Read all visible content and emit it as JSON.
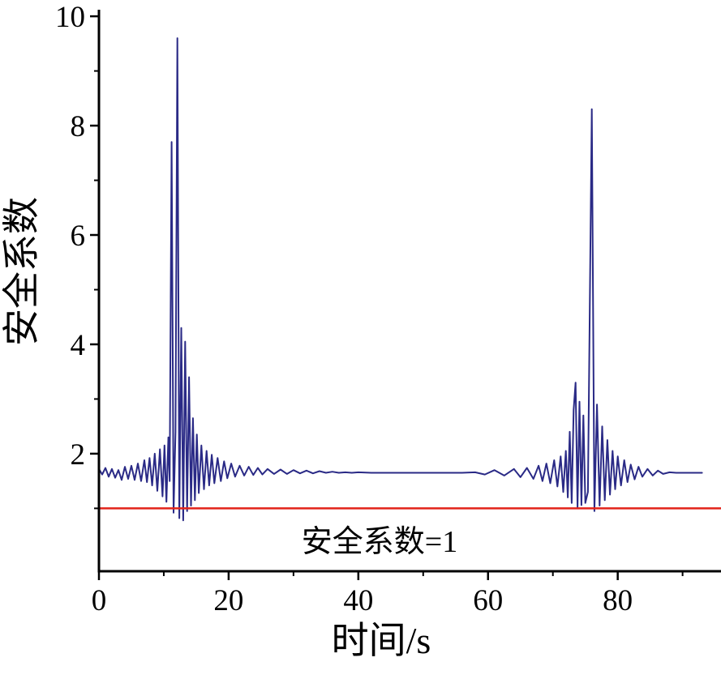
{
  "figure": {
    "background": "#ffffff",
    "axis_color": "#000000",
    "tick_label_color": "#000000"
  },
  "chart_data": {
    "type": "line",
    "title": "",
    "xlabel": "时间/s",
    "ylabel": "安全系数",
    "xlim": [
      0,
      95.3
    ],
    "ylim": [
      -0.15,
      10.12
    ],
    "x_major_ticks": [
      0,
      20,
      40,
      60,
      80
    ],
    "x_minor_ticks": [
      10,
      30,
      50,
      70,
      90
    ],
    "y_major_ticks": [
      2,
      4,
      6,
      8,
      10
    ],
    "y_minor_ticks": [
      1,
      3,
      5,
      7,
      9
    ],
    "grid": false,
    "legend": "none",
    "series": [
      {
        "name": "安全系数",
        "color": "#2a2a86",
        "width": 2,
        "points": [
          [
            0,
            1.72
          ],
          [
            0.5,
            1.62
          ],
          [
            1,
            1.74
          ],
          [
            1.5,
            1.58
          ],
          [
            2,
            1.72
          ],
          [
            2.5,
            1.56
          ],
          [
            3,
            1.7
          ],
          [
            3.5,
            1.52
          ],
          [
            4,
            1.76
          ],
          [
            4.5,
            1.54
          ],
          [
            5,
            1.78
          ],
          [
            5.5,
            1.52
          ],
          [
            6,
            1.82
          ],
          [
            6.5,
            1.5
          ],
          [
            7,
            1.88
          ],
          [
            7.4,
            1.48
          ],
          [
            7.8,
            1.92
          ],
          [
            8.2,
            1.42
          ],
          [
            8.6,
            2.0
          ],
          [
            9,
            1.32
          ],
          [
            9.4,
            2.08
          ],
          [
            9.8,
            1.22
          ],
          [
            10.1,
            2.15
          ],
          [
            10.4,
            1.12
          ],
          [
            10.7,
            2.3
          ],
          [
            10.9,
            1.5
          ],
          [
            11.2,
            7.7
          ],
          [
            11.5,
            0.92
          ],
          [
            11.8,
            2.4
          ],
          [
            12.1,
            9.6
          ],
          [
            12.4,
            0.82
          ],
          [
            12.7,
            4.3
          ],
          [
            13,
            0.78
          ],
          [
            13.3,
            4.05
          ],
          [
            13.6,
            0.95
          ],
          [
            13.9,
            3.4
          ],
          [
            14.2,
            1.05
          ],
          [
            14.5,
            2.65
          ],
          [
            14.8,
            1.15
          ],
          [
            15.1,
            2.35
          ],
          [
            15.4,
            1.28
          ],
          [
            15.8,
            2.15
          ],
          [
            16.2,
            1.35
          ],
          [
            16.6,
            2.05
          ],
          [
            17,
            1.42
          ],
          [
            17.4,
            1.98
          ],
          [
            17.8,
            1.46
          ],
          [
            18.3,
            1.92
          ],
          [
            18.8,
            1.5
          ],
          [
            19.3,
            1.86
          ],
          [
            19.8,
            1.55
          ],
          [
            20.4,
            1.82
          ],
          [
            21,
            1.58
          ],
          [
            21.7,
            1.78
          ],
          [
            22.4,
            1.6
          ],
          [
            23.1,
            1.76
          ],
          [
            23.8,
            1.61
          ],
          [
            24.5,
            1.74
          ],
          [
            25.2,
            1.62
          ],
          [
            26,
            1.72
          ],
          [
            27,
            1.63
          ],
          [
            28,
            1.71
          ],
          [
            29,
            1.63
          ],
          [
            30,
            1.7
          ],
          [
            31,
            1.64
          ],
          [
            32,
            1.69
          ],
          [
            33,
            1.64
          ],
          [
            34,
            1.68
          ],
          [
            35,
            1.65
          ],
          [
            36,
            1.67
          ],
          [
            37,
            1.65
          ],
          [
            38,
            1.66
          ],
          [
            39,
            1.65
          ],
          [
            40,
            1.66
          ],
          [
            42,
            1.65
          ],
          [
            44,
            1.65
          ],
          [
            46,
            1.65
          ],
          [
            48,
            1.65
          ],
          [
            50,
            1.65
          ],
          [
            52,
            1.65
          ],
          [
            54,
            1.65
          ],
          [
            56,
            1.65
          ],
          [
            58,
            1.66
          ],
          [
            59.5,
            1.62
          ],
          [
            61,
            1.7
          ],
          [
            62.5,
            1.6
          ],
          [
            64,
            1.72
          ],
          [
            65,
            1.57
          ],
          [
            66,
            1.74
          ],
          [
            67,
            1.54
          ],
          [
            67.8,
            1.78
          ],
          [
            68.4,
            1.5
          ],
          [
            69,
            1.82
          ],
          [
            69.6,
            1.46
          ],
          [
            70.2,
            1.88
          ],
          [
            70.7,
            1.4
          ],
          [
            71.2,
            1.95
          ],
          [
            71.6,
            1.3
          ],
          [
            72,
            2.05
          ],
          [
            72.3,
            1.2
          ],
          [
            72.6,
            2.4
          ],
          [
            72.9,
            1.1
          ],
          [
            73.2,
            2.8
          ],
          [
            73.5,
            3.3
          ],
          [
            73.8,
            1.02
          ],
          [
            74.1,
            2.95
          ],
          [
            74.4,
            1.06
          ],
          [
            74.7,
            2.7
          ],
          [
            75,
            1.1
          ],
          [
            75.4,
            1.3
          ],
          [
            76,
            8.3
          ],
          [
            76.4,
            0.95
          ],
          [
            76.8,
            2.9
          ],
          [
            77.2,
            1.05
          ],
          [
            77.6,
            2.5
          ],
          [
            78,
            1.15
          ],
          [
            78.4,
            2.25
          ],
          [
            78.8,
            1.25
          ],
          [
            79.2,
            2.05
          ],
          [
            79.6,
            1.35
          ],
          [
            80,
            1.95
          ],
          [
            80.5,
            1.42
          ],
          [
            81,
            1.88
          ],
          [
            81.5,
            1.48
          ],
          [
            82,
            1.8
          ],
          [
            82.6,
            1.53
          ],
          [
            83.2,
            1.76
          ],
          [
            83.8,
            1.58
          ],
          [
            84.6,
            1.72
          ],
          [
            85.4,
            1.6
          ],
          [
            86.2,
            1.69
          ],
          [
            87,
            1.63
          ],
          [
            88,
            1.66
          ],
          [
            89,
            1.65
          ],
          [
            90,
            1.65
          ],
          [
            91,
            1.65
          ],
          [
            92,
            1.65
          ],
          [
            93,
            1.65
          ]
        ]
      }
    ],
    "reference_line": {
      "y": 1,
      "color": "#e2231a",
      "width": 2.5,
      "label": "安全系数=1"
    }
  }
}
